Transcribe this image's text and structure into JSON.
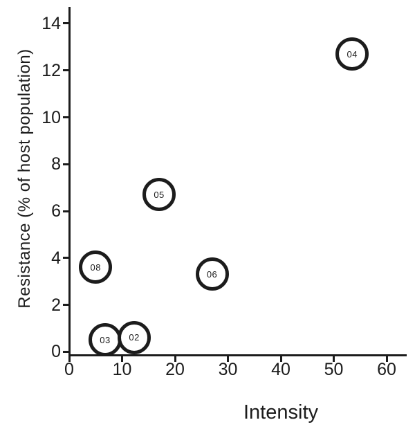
{
  "figure": {
    "background": "#ffffff",
    "ink_color": "#1c1c1c"
  },
  "chart_data": {
    "type": "scatter",
    "marker_style": "open-circle-labeled",
    "title": "",
    "xlabel": "Intensity",
    "ylabel": "Resistance (% of host population)",
    "xlim": [
      0,
      63.8
    ],
    "ylim": [
      0,
      14.8
    ],
    "x_ticks": [
      0,
      10,
      20,
      30,
      40,
      50,
      60
    ],
    "y_ticks": [
      0,
      2,
      4,
      6,
      8,
      10,
      12,
      14
    ],
    "grid": false,
    "legend": "none",
    "points": [
      {
        "label": "04",
        "x": 53.5,
        "y": 12.7
      },
      {
        "label": "05",
        "x": 17.0,
        "y": 6.7
      },
      {
        "label": "08",
        "x": 5.0,
        "y": 3.6
      },
      {
        "label": "06",
        "x": 27.0,
        "y": 3.3
      },
      {
        "label": "03",
        "x": 6.8,
        "y": 0.5
      },
      {
        "label": "02",
        "x": 12.3,
        "y": 0.6
      }
    ]
  }
}
